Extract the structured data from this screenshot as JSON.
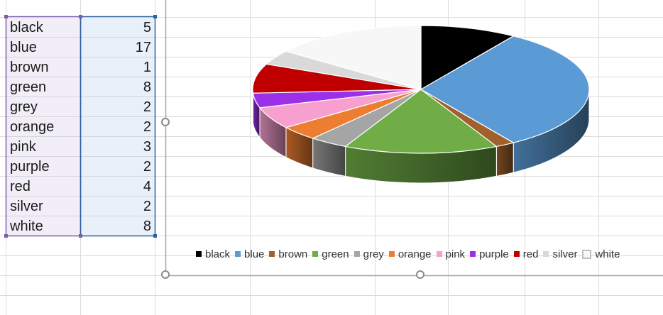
{
  "sheet": {
    "rows": [
      {
        "label": "black",
        "value": "5"
      },
      {
        "label": "blue",
        "value": "17"
      },
      {
        "label": "brown",
        "value": "1"
      },
      {
        "label": "green",
        "value": "8"
      },
      {
        "label": "grey",
        "value": "2"
      },
      {
        "label": "orange",
        "value": "2"
      },
      {
        "label": "pink",
        "value": "3"
      },
      {
        "label": "purple",
        "value": "2"
      },
      {
        "label": "red",
        "value": "4"
      },
      {
        "label": "silver",
        "value": "2"
      },
      {
        "label": "white",
        "value": "8"
      }
    ],
    "selection_colors": {
      "label_range": "#7a5ea8",
      "value_range": "#2e5f9e"
    }
  },
  "chart_data": {
    "type": "pie",
    "style": "3d",
    "categories": [
      "black",
      "blue",
      "brown",
      "green",
      "grey",
      "orange",
      "pink",
      "purple",
      "red",
      "silver",
      "white"
    ],
    "values": [
      5,
      17,
      1,
      8,
      2,
      2,
      3,
      2,
      4,
      2,
      8
    ],
    "colors": [
      "#000000",
      "#5b9bd5",
      "#a0612d",
      "#70ad47",
      "#a5a5a5",
      "#ed7d31",
      "#f79fcf",
      "#9b30e8",
      "#c00000",
      "#d9d9d9",
      "#f7f7f7"
    ],
    "legend_position": "bottom"
  }
}
